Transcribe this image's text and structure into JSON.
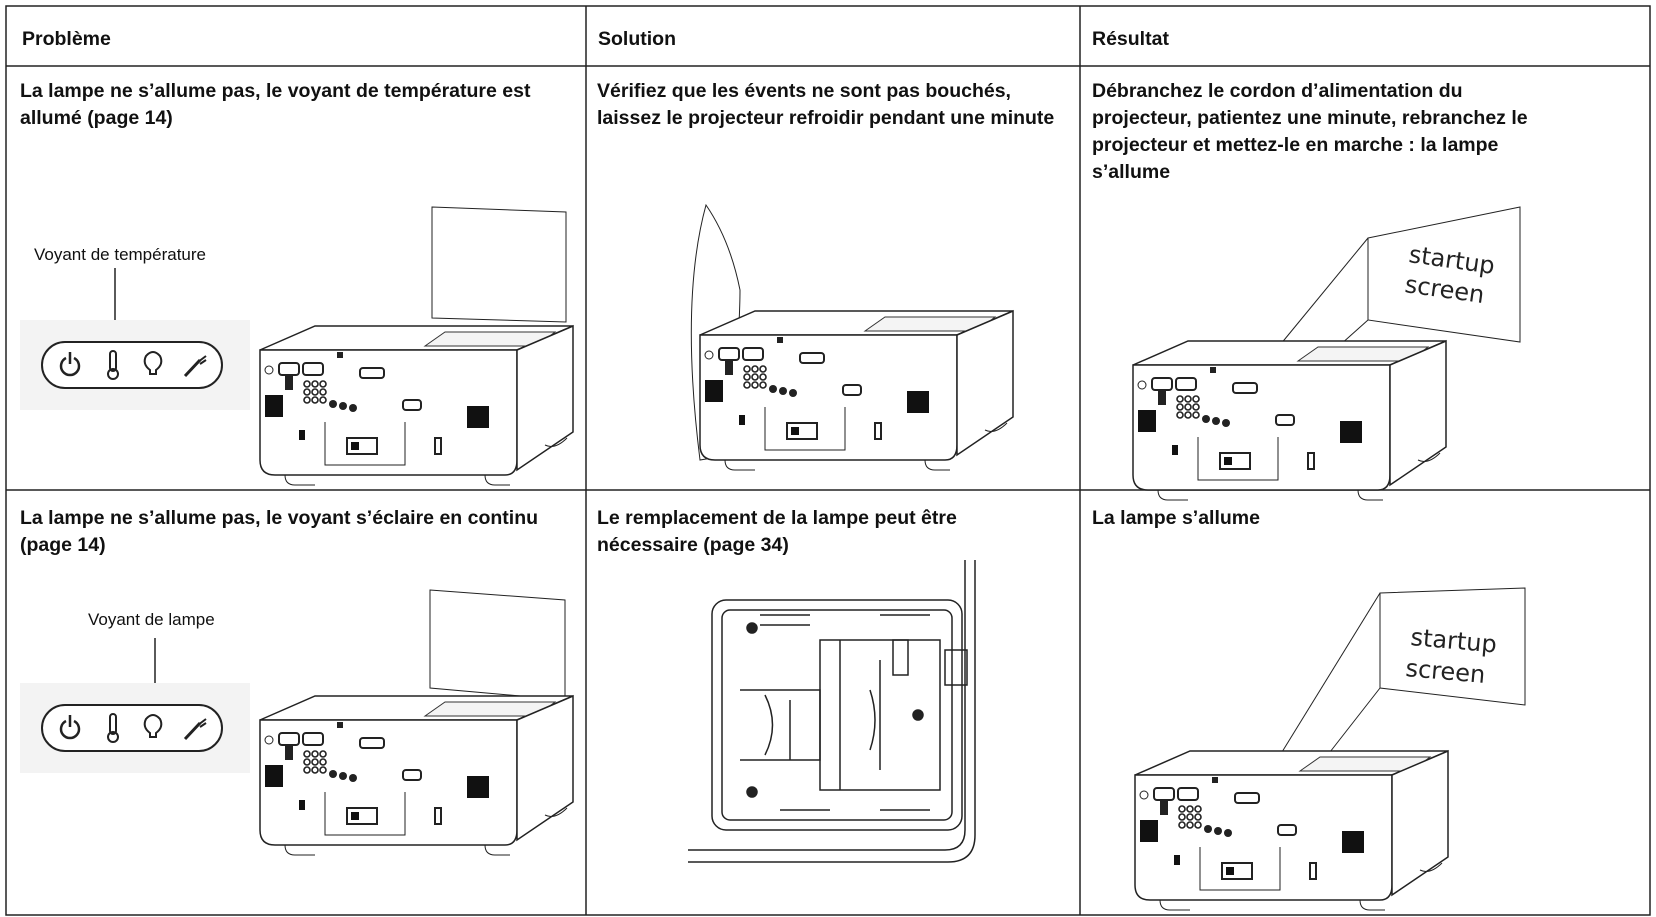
{
  "table": {
    "header": [
      "Problème",
      "Solution",
      "Résultat"
    ],
    "rows": [
      {
        "problem": "La lampe ne s’allume pas, le voyant de température est allumé (page 14)",
        "solution": "Vérifiez que les évents ne sont pas bouchés, laissez le projecteur refroidir pendant une minute",
        "result": "Débranchez le cordon d’alimentation du projecteur, patientez une minute, rebranchez le projecteur et mettez-le en marche : la lampe s’allume",
        "indicator_label": "Voyant de température",
        "screen_label": [
          "startup",
          "screen"
        ]
      },
      {
        "problem": "La lampe ne s’allume pas, le voyant s’éclaire en continu (page 14)",
        "solution": "Le remplacement de la lampe peut être nécessaire (page 34)",
        "result": "La lampe s’allume",
        "indicator_label": "Voyant de lampe",
        "screen_label": [
          "startup",
          "screen"
        ]
      }
    ]
  }
}
